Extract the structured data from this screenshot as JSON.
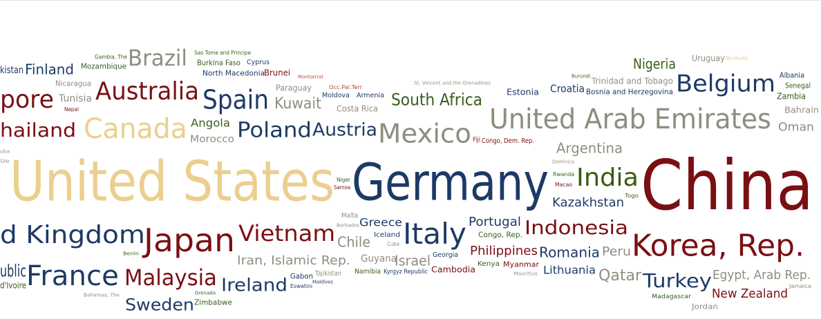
{
  "colors": {
    "navy": "#1d3a66",
    "maroon": "#7a0f12",
    "tan": "#ebcf8e",
    "gray": "#8f8d80",
    "olive": "#3d5a14",
    "green": "#385e1c",
    "red": "#b34a35",
    "gold": "#e8c67c"
  },
  "words": [
    {
      "name": "China",
      "text": "China",
      "color": "maroon"
    },
    {
      "name": "Germany",
      "text": "Germany",
      "color": "navy"
    },
    {
      "name": "United States",
      "text": "United States",
      "color": "tan"
    },
    {
      "name": "Korea, Rep.",
      "text": "Korea, Rep.",
      "color": "maroon"
    },
    {
      "name": "United Arab Emirates",
      "text": "United Arab Emirates",
      "color": "gray"
    },
    {
      "name": "United Kingdom",
      "text": "d Kingdom",
      "color": "navy"
    },
    {
      "name": "Japan",
      "text": "Japan",
      "color": "maroon"
    },
    {
      "name": "France",
      "text": "France",
      "color": "navy"
    },
    {
      "name": "Mexico",
      "text": "Mexico",
      "color": "gray"
    },
    {
      "name": "Italy",
      "text": "Italy",
      "color": "navy"
    },
    {
      "name": "Canada",
      "text": "Canada",
      "color": "tan"
    },
    {
      "name": "Australia",
      "text": "Australia",
      "color": "maroon"
    },
    {
      "name": "Vietnam",
      "text": "Vietnam",
      "color": "maroon"
    },
    {
      "name": "Malaysia",
      "text": "Malaysia",
      "color": "maroon"
    },
    {
      "name": "Spain",
      "text": "Spain",
      "color": "navy"
    },
    {
      "name": "Singapore",
      "text": "pore",
      "color": "maroon"
    },
    {
      "name": "Belgium",
      "text": "Belgium",
      "color": "navy"
    },
    {
      "name": "Brazil",
      "text": "Brazil",
      "color": "gray"
    },
    {
      "name": "India",
      "text": "India",
      "color": "olive"
    },
    {
      "name": "Poland",
      "text": "Poland",
      "color": "navy"
    },
    {
      "name": "Indonesia",
      "text": "Indonesia",
      "color": "maroon"
    },
    {
      "name": "Thailand",
      "text": "hailand",
      "color": "maroon"
    },
    {
      "name": "Turkey",
      "text": "Turkey",
      "color": "navy"
    },
    {
      "name": "Ireland",
      "text": "Ireland",
      "color": "navy"
    },
    {
      "name": "Sweden",
      "text": "Sweden",
      "color": "navy"
    },
    {
      "name": "Austria",
      "text": "Austria",
      "color": "navy"
    },
    {
      "name": "South Africa",
      "text": "South Africa",
      "color": "green"
    },
    {
      "name": "Czech Republic",
      "text": "ublic",
      "color": "navy"
    },
    {
      "name": "Switzerland",
      "text": "Switzerland",
      "color": "navy"
    },
    {
      "name": "Egypt, Arab Rep.",
      "text": "Egypt, Arab Rep.",
      "color": "gray"
    },
    {
      "name": "Philippines",
      "text": "Philippines",
      "color": "maroon"
    },
    {
      "name": "Romania",
      "text": "Romania",
      "color": "navy"
    },
    {
      "name": "Iran, Islamic Rep.",
      "text": "Iran, Islamic Rep.",
      "color": "gray"
    },
    {
      "name": "New Zealand",
      "text": "New Zealand",
      "color": "maroon"
    },
    {
      "name": "Argentina",
      "text": "Argentina",
      "color": "gray"
    },
    {
      "name": "Kazakhstan",
      "text": "Kazakhstan",
      "color": "navy"
    },
    {
      "name": "Nigeria",
      "text": "Nigeria",
      "color": "green"
    },
    {
      "name": "Qatar",
      "text": "Qatar",
      "color": "gray"
    },
    {
      "name": "Portugal",
      "text": "Portugal",
      "color": "navy"
    },
    {
      "name": "Israel",
      "text": "Israel",
      "color": "gray"
    },
    {
      "name": "Kuwait",
      "text": "Kuwait",
      "color": "gray"
    },
    {
      "name": "Chile",
      "text": "Chile",
      "color": "gray"
    },
    {
      "name": "Finland",
      "text": "Finland",
      "color": "navy"
    },
    {
      "name": "Greece",
      "text": "Greece",
      "color": "navy"
    },
    {
      "name": "Peru",
      "text": "Peru",
      "color": "gray"
    },
    {
      "name": "Oman",
      "text": "Oman",
      "color": "gray"
    },
    {
      "name": "Croatia",
      "text": "Croatia",
      "color": "navy"
    },
    {
      "name": "Lithuania",
      "text": "Lithuania",
      "color": "navy"
    },
    {
      "name": "Angola",
      "text": "Angola",
      "color": "green"
    },
    {
      "name": "Tunisia",
      "text": "Tunisia",
      "color": "gray"
    },
    {
      "name": "Morocco",
      "text": "Morocco",
      "color": "gray"
    },
    {
      "name": "Guyana",
      "text": "Guyana",
      "color": "gray"
    },
    {
      "name": "Uruguay",
      "text": "Uruguay",
      "color": "gray"
    },
    {
      "name": "Cambodia",
      "text": "Cambodia",
      "color": "maroon"
    },
    {
      "name": "Estonia",
      "text": "Estonia",
      "color": "navy"
    },
    {
      "name": "Costa Rica",
      "text": "Costa Rica",
      "color": "gray"
    },
    {
      "name": "Bahrain",
      "text": "Bahrain",
      "color": "gray"
    },
    {
      "name": "Paraguay",
      "text": "Paraguay",
      "color": "gray"
    },
    {
      "name": "Zambia",
      "text": "Zambia",
      "color": "green"
    },
    {
      "name": "Trinidad and Tobago",
      "text": "Trinidad and Tobago",
      "color": "gray"
    },
    {
      "name": "Pakistan",
      "text": "kistan",
      "color": "navy"
    },
    {
      "name": "Mozambique",
      "text": "Mozambique",
      "color": "green"
    },
    {
      "name": "North Macedonia",
      "text": "North Macedonia",
      "color": "navy"
    },
    {
      "name": "Brunei",
      "text": "Brunei",
      "color": "maroon"
    },
    {
      "name": "Burkina Faso",
      "text": "Burkina Faso",
      "color": "green"
    },
    {
      "name": "Cyprus",
      "text": "Cyprus",
      "color": "navy"
    },
    {
      "name": "Nicaragua",
      "text": "Nicaragua",
      "color": "gray"
    },
    {
      "name": "Bosnia and Herzegovina",
      "text": "Bosnia and Herzegovina",
      "color": "navy"
    },
    {
      "name": "Albania",
      "text": "Albania",
      "color": "navy"
    },
    {
      "name": "Senegal",
      "text": "Senegal",
      "color": "green"
    },
    {
      "name": "Moldova",
      "text": "Moldova",
      "color": "navy"
    },
    {
      "name": "Armenia",
      "text": "Armenia",
      "color": "navy"
    },
    {
      "name": "Congo, Dem. Rep.",
      "text": "Congo, Dem. Rep.",
      "color": "maroon"
    },
    {
      "name": "Fiji",
      "text": "Fiji",
      "color": "maroon"
    },
    {
      "name": "Iceland",
      "text": "Iceland",
      "color": "navy"
    },
    {
      "name": "Georgia",
      "text": "Georgia",
      "color": "navy"
    },
    {
      "name": "Congo, Rep.",
      "text": "Congo, Rep.",
      "color": "green"
    },
    {
      "name": "Kenya",
      "text": "Kenya",
      "color": "green"
    },
    {
      "name": "Myanmar",
      "text": "Myanmar",
      "color": "maroon"
    },
    {
      "name": "Gabon",
      "text": "Gabon",
      "color": "navy"
    },
    {
      "name": "Tajikistan",
      "text": "Tajikistan",
      "color": "gray"
    },
    {
      "name": "Namibia",
      "text": "Namibia",
      "color": "green"
    },
    {
      "name": "Kyrgyz Republic",
      "text": "Kyrgyz Republic",
      "color": "navy"
    },
    {
      "name": "Malta",
      "text": "Malta",
      "color": "gray"
    },
    {
      "name": "Cuba",
      "text": "Cuba",
      "color": "gray"
    },
    {
      "name": "Zimbabwe",
      "text": "Zimbabwe",
      "color": "green"
    },
    {
      "name": "Cote d'Ivoire",
      "text": "d'Ivoire",
      "color": "green"
    },
    {
      "name": "Madagascar",
      "text": "Madagascar",
      "color": "green"
    },
    {
      "name": "Jordan",
      "text": "Jordan",
      "color": "gray"
    },
    {
      "name": "Jamaica",
      "text": "Jamaica",
      "color": "gray"
    },
    {
      "name": "Nepal",
      "text": "Nepal",
      "color": "maroon"
    },
    {
      "name": "Gambia, The",
      "text": "Gambia, The",
      "color": "green"
    },
    {
      "name": "Sao Tome and Principe",
      "text": "Sao Tome and Principe",
      "color": "green"
    },
    {
      "name": "Montserrat",
      "text": "Montserrat",
      "color": "red"
    },
    {
      "name": "Occ.Pal.Terr",
      "text": "Occ.Pal.Terr",
      "color": "red"
    },
    {
      "name": "St. Vincent and the Grenadines",
      "text": "St. Vincent and the Grenadines",
      "color": "gray"
    },
    {
      "name": "Burundi",
      "text": "Burundi",
      "color": "green"
    },
    {
      "name": "Bermuda",
      "text": "Bermuda",
      "color": "gold"
    },
    {
      "name": "Dominica",
      "text": "Dominica",
      "color": "gray"
    },
    {
      "name": "Rwanda",
      "text": "Rwanda",
      "color": "green"
    },
    {
      "name": "Macao",
      "text": "Macao",
      "color": "maroon"
    },
    {
      "name": "Togo",
      "text": "Togo",
      "color": "green"
    },
    {
      "name": "Niger",
      "text": "Niger",
      "color": "green"
    },
    {
      "name": "Samoa",
      "text": "Samoa",
      "color": "maroon"
    },
    {
      "name": "Barbados",
      "text": "Barbados",
      "color": "gray"
    },
    {
      "name": "Benin",
      "text": "Benin",
      "color": "green"
    },
    {
      "name": "Eswatini",
      "text": "Eswatini",
      "color": "navy"
    },
    {
      "name": "Maldives",
      "text": "Maldives",
      "color": "navy"
    },
    {
      "name": "Mauritius",
      "text": "Mauritius",
      "color": "gray"
    },
    {
      "name": "Grenada",
      "text": "Grenada",
      "color": "green"
    },
    {
      "name": "Bahamas, The",
      "text": "Bahamas, The",
      "color": "gray"
    },
    {
      "name": "Cuba (partial)",
      "text": "uba",
      "color": "gray"
    },
    {
      "name": "Belize (partial)",
      "text": "ize",
      "color": "gray"
    }
  ]
}
